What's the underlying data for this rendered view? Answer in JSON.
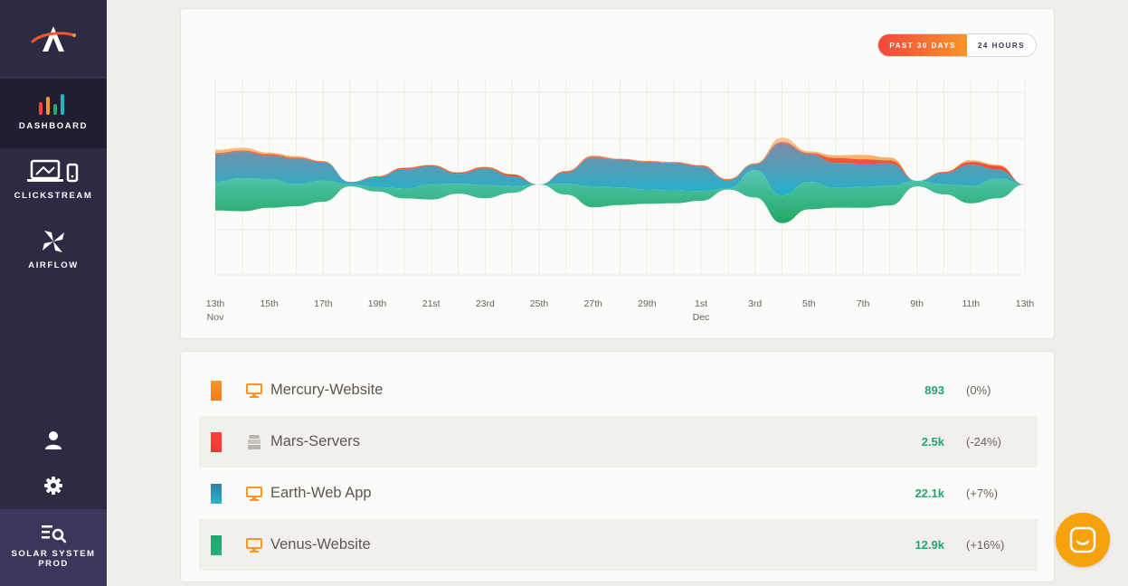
{
  "sidebar": {
    "nav": [
      {
        "label": "DASHBOARD",
        "icon": "bar-chart-icon",
        "active": true
      },
      {
        "label": "CLICKSTREAM",
        "icon": "devices-icon",
        "active": false
      },
      {
        "label": "AIRFLOW",
        "icon": "pinwheel-icon",
        "active": false
      }
    ],
    "workspace": {
      "label": "SOLAR SYSTEM PROD",
      "icon": "search-list-icon"
    }
  },
  "chart": {
    "toggle": {
      "active": "PAST 30 DAYS",
      "inactive": "24 HOURS"
    },
    "x_ticks": [
      {
        "day": "13th",
        "month": "Nov"
      },
      {
        "day": "15th",
        "month": ""
      },
      {
        "day": "17th",
        "month": ""
      },
      {
        "day": "19th",
        "month": ""
      },
      {
        "day": "21st",
        "month": ""
      },
      {
        "day": "23rd",
        "month": ""
      },
      {
        "day": "25th",
        "month": ""
      },
      {
        "day": "27th",
        "month": ""
      },
      {
        "day": "29th",
        "month": ""
      },
      {
        "day": "1st",
        "month": "Dec"
      },
      {
        "day": "3rd",
        "month": ""
      },
      {
        "day": "5th",
        "month": ""
      },
      {
        "day": "7th",
        "month": ""
      },
      {
        "day": "9th",
        "month": ""
      },
      {
        "day": "11th",
        "month": ""
      },
      {
        "day": "13th",
        "month": ""
      }
    ]
  },
  "chart_data": {
    "type": "area",
    "subtype": "streamgraph",
    "title": "",
    "xlabel": "",
    "ylabel": "",
    "x": [
      "Nov 13",
      "Nov 14",
      "Nov 15",
      "Nov 16",
      "Nov 17",
      "Nov 18",
      "Nov 19",
      "Nov 20",
      "Nov 21",
      "Nov 22",
      "Nov 23",
      "Nov 24",
      "Nov 25",
      "Nov 26",
      "Nov 27",
      "Nov 28",
      "Nov 29",
      "Nov 30",
      "Dec 1",
      "Dec 2",
      "Dec 3",
      "Dec 4",
      "Dec 5",
      "Dec 6",
      "Dec 7",
      "Dec 8",
      "Dec 9",
      "Dec 10",
      "Dec 11",
      "Dec 12",
      "Dec 13"
    ],
    "series": [
      {
        "name": "Mercury-Website",
        "color": "#f7962a",
        "values": [
          6,
          5,
          3,
          3,
          1,
          0,
          1,
          1,
          1,
          1,
          1,
          1,
          0,
          1,
          2,
          1,
          1,
          1,
          1,
          1,
          1,
          8,
          3,
          5,
          8,
          5,
          0,
          1,
          3,
          2,
          0
        ]
      },
      {
        "name": "Mars-Servers",
        "color": "#f4453a",
        "values": [
          2,
          2,
          3,
          2,
          1,
          0,
          1,
          2,
          2,
          2,
          2,
          3,
          0,
          2,
          2,
          1,
          1,
          1,
          2,
          1,
          1,
          2,
          2,
          9,
          8,
          6,
          0,
          2,
          5,
          7,
          0
        ]
      },
      {
        "name": "Earth-Web App",
        "color": "#2aaec3",
        "values": [
          50,
          48,
          42,
          46,
          34,
          4,
          18,
          35,
          32,
          18,
          30,
          18,
          0,
          20,
          52,
          50,
          50,
          50,
          44,
          15,
          10,
          95,
          50,
          45,
          42,
          40,
          0,
          20,
          38,
          16,
          0
        ]
      },
      {
        "name": "Venus-Website",
        "color": "#23a86a",
        "values": [
          52,
          60,
          52,
          40,
          38,
          4,
          8,
          18,
          28,
          18,
          24,
          12,
          0,
          20,
          38,
          32,
          26,
          23,
          18,
          2,
          50,
          50,
          50,
          36,
          38,
          36,
          10,
          18,
          32,
          36,
          0
        ]
      }
    ]
  },
  "list": [
    {
      "name": "Mercury-Website",
      "count": "893",
      "delta": "(0%)",
      "icon": "monitor-icon",
      "swatch": [
        "#f7962a",
        "#f47d20"
      ]
    },
    {
      "name": "Mars-Servers",
      "count": "2.5k",
      "delta": "(-24%)",
      "icon": "server-icon",
      "swatch": [
        "#f4453a",
        "#ee3b33"
      ]
    },
    {
      "name": "Earth-Web App",
      "count": "22.1k",
      "delta": "(+7%)",
      "icon": "monitor-icon",
      "swatch": [
        "#2d7fa3",
        "#2bb3cc"
      ]
    },
    {
      "name": "Venus-Website",
      "count": "12.9k",
      "delta": "(+16%)",
      "icon": "monitor-icon",
      "swatch": [
        "#21a56c",
        "#28b07a"
      ]
    }
  ]
}
